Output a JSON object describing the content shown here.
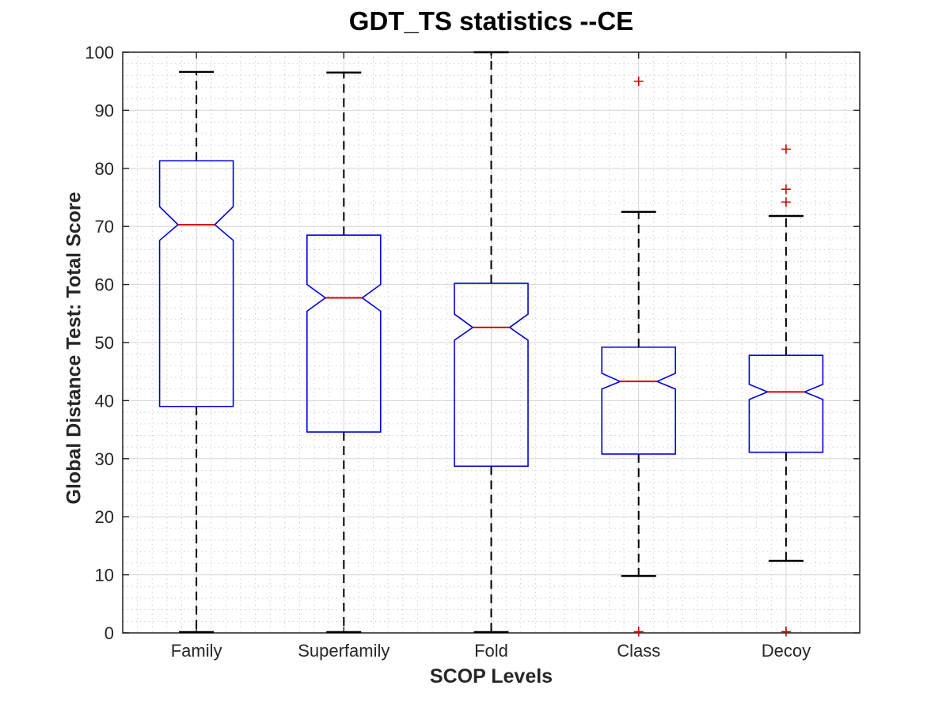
{
  "title": "GDT_TS statistics --CE",
  "x_axis": {
    "label": "SCOP Levels"
  },
  "y_axis": {
    "label": "Global Distance Test: Total Score",
    "ticks": [
      0,
      10,
      20,
      30,
      40,
      50,
      60,
      70,
      80,
      90,
      100
    ]
  },
  "chart_data": {
    "type": "boxplot",
    "title": "GDT_TS statistics --CE",
    "xlabel": "SCOP Levels",
    "ylabel": "Global Distance Test: Total Score",
    "ylim": [
      0,
      100
    ],
    "y_tick_step": 10,
    "grid": {
      "major": true,
      "minor": true
    },
    "notched": true,
    "categories": [
      "Family",
      "Superfamily",
      "Fold",
      "Class",
      "Decoy"
    ],
    "series": [
      {
        "name": "Family",
        "whisker_low": 0,
        "q1": 39.0,
        "median": 70.3,
        "q3": 81.3,
        "whisker_high": 96.6,
        "notch_low": 67.6,
        "notch_high": 73.4,
        "outliers": []
      },
      {
        "name": "Superfamily",
        "whisker_low": 0,
        "q1": 34.6,
        "median": 57.7,
        "q3": 68.5,
        "whisker_high": 96.5,
        "notch_low": 55.4,
        "notch_high": 60.0,
        "outliers": []
      },
      {
        "name": "Fold",
        "whisker_low": 0,
        "q1": 28.7,
        "median": 52.6,
        "q3": 60.2,
        "whisker_high": 100.0,
        "notch_low": 50.4,
        "notch_high": 54.9,
        "outliers": []
      },
      {
        "name": "Class",
        "whisker_low": 9.8,
        "q1": 30.8,
        "median": 43.3,
        "q3": 49.2,
        "whisker_high": 72.5,
        "notch_low": 42.0,
        "notch_high": 44.7,
        "outliers": [
          95.0,
          0.2
        ]
      },
      {
        "name": "Decoy",
        "whisker_low": 12.4,
        "q1": 31.1,
        "median": 41.5,
        "q3": 47.8,
        "whisker_high": 71.8,
        "notch_low": 40.2,
        "notch_high": 42.8,
        "outliers": [
          83.3,
          76.4,
          74.2,
          0.2
        ]
      }
    ],
    "colors": {
      "box": "#0000e0",
      "median": "#d40000",
      "outlier": "#d40000",
      "whisker": "#000000",
      "axis": "#1f1f1f",
      "tick_label": "#262626",
      "grid_major": "#d5d5d5",
      "grid_minor": "#cfcfcf",
      "background": "#ffffff"
    }
  }
}
